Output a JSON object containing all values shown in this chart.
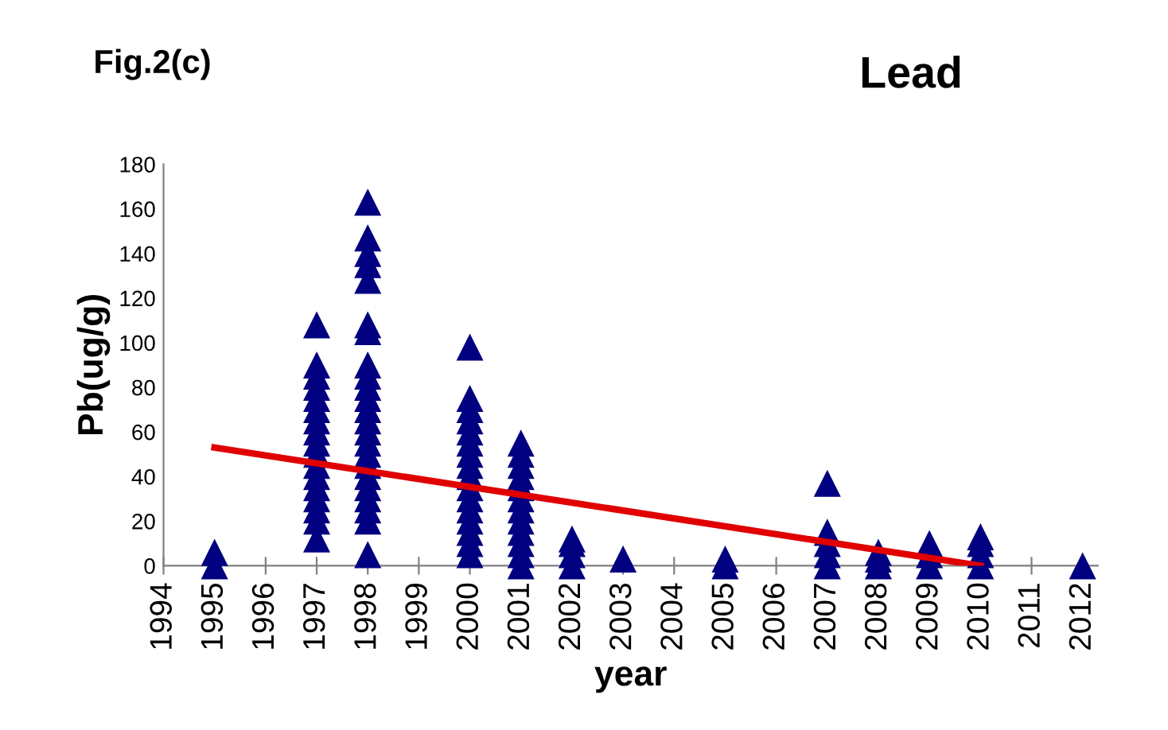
{
  "chart_data": {
    "type": "scatter",
    "title": "Lead",
    "xlabel": "year",
    "ylabel": "Pb(ug/g)",
    "annotations": [
      "Fig.2(c)"
    ],
    "series": [
      {
        "color": "#000080",
        "marker": "triangle",
        "x": [
          1995,
          1995,
          1997,
          1997,
          1997,
          1997,
          1997,
          1997,
          1997,
          1997,
          1997,
          1997,
          1997,
          1997,
          1997,
          1997,
          1997,
          1997,
          1997,
          1998,
          1998,
          1998,
          1998,
          1998,
          1998,
          1998,
          1998,
          1998,
          1998,
          1998,
          1998,
          1998,
          1998,
          1998,
          1998,
          1998,
          1998,
          1998,
          1998,
          1998,
          1998,
          1998,
          2000,
          2000,
          2000,
          2000,
          2000,
          2000,
          2000,
          2000,
          2000,
          2000,
          2000,
          2000,
          2000,
          2000,
          2000,
          2000,
          2001,
          2001,
          2001,
          2001,
          2001,
          2001,
          2001,
          2001,
          2001,
          2001,
          2001,
          2001,
          2002,
          2002,
          2002,
          2002,
          2003,
          2005,
          2005,
          2007,
          2007,
          2007,
          2007,
          2007,
          2008,
          2008,
          2008,
          2009,
          2009,
          2009,
          2010,
          2010,
          2010,
          2010,
          2012
        ],
        "values": [
          0,
          6,
          12,
          20,
          25,
          30,
          35,
          40,
          45,
          50,
          55,
          60,
          65,
          70,
          75,
          80,
          85,
          90,
          108,
          5,
          20,
          25,
          30,
          35,
          40,
          45,
          50,
          55,
          60,
          65,
          70,
          75,
          80,
          85,
          90,
          105,
          108,
          128,
          135,
          140,
          147,
          163,
          5,
          10,
          15,
          20,
          25,
          30,
          35,
          40,
          45,
          50,
          55,
          60,
          65,
          70,
          75,
          98,
          0,
          5,
          10,
          15,
          20,
          25,
          30,
          35,
          40,
          45,
          50,
          55,
          0,
          5,
          10,
          12,
          3,
          0,
          3,
          0,
          5,
          10,
          15,
          37,
          0,
          3,
          6,
          0,
          5,
          10,
          0,
          5,
          10,
          13,
          0
        ]
      },
      {
        "type": "line",
        "color": "#e00000",
        "marker": "none",
        "x": [
          1995,
          2010
        ],
        "values": [
          53,
          0
        ]
      }
    ],
    "xlim": [
      1994,
      2012.3
    ],
    "xticks": [
      1994,
      1995,
      1996,
      1997,
      1998,
      1999,
      2000,
      2001,
      2002,
      2003,
      2004,
      2005,
      2006,
      2007,
      2008,
      2009,
      2010,
      2011,
      2012
    ],
    "ylim": [
      0,
      180
    ],
    "yticks": [
      0,
      20,
      40,
      60,
      80,
      100,
      120,
      140,
      160,
      180
    ],
    "grid": false,
    "legend": false
  }
}
